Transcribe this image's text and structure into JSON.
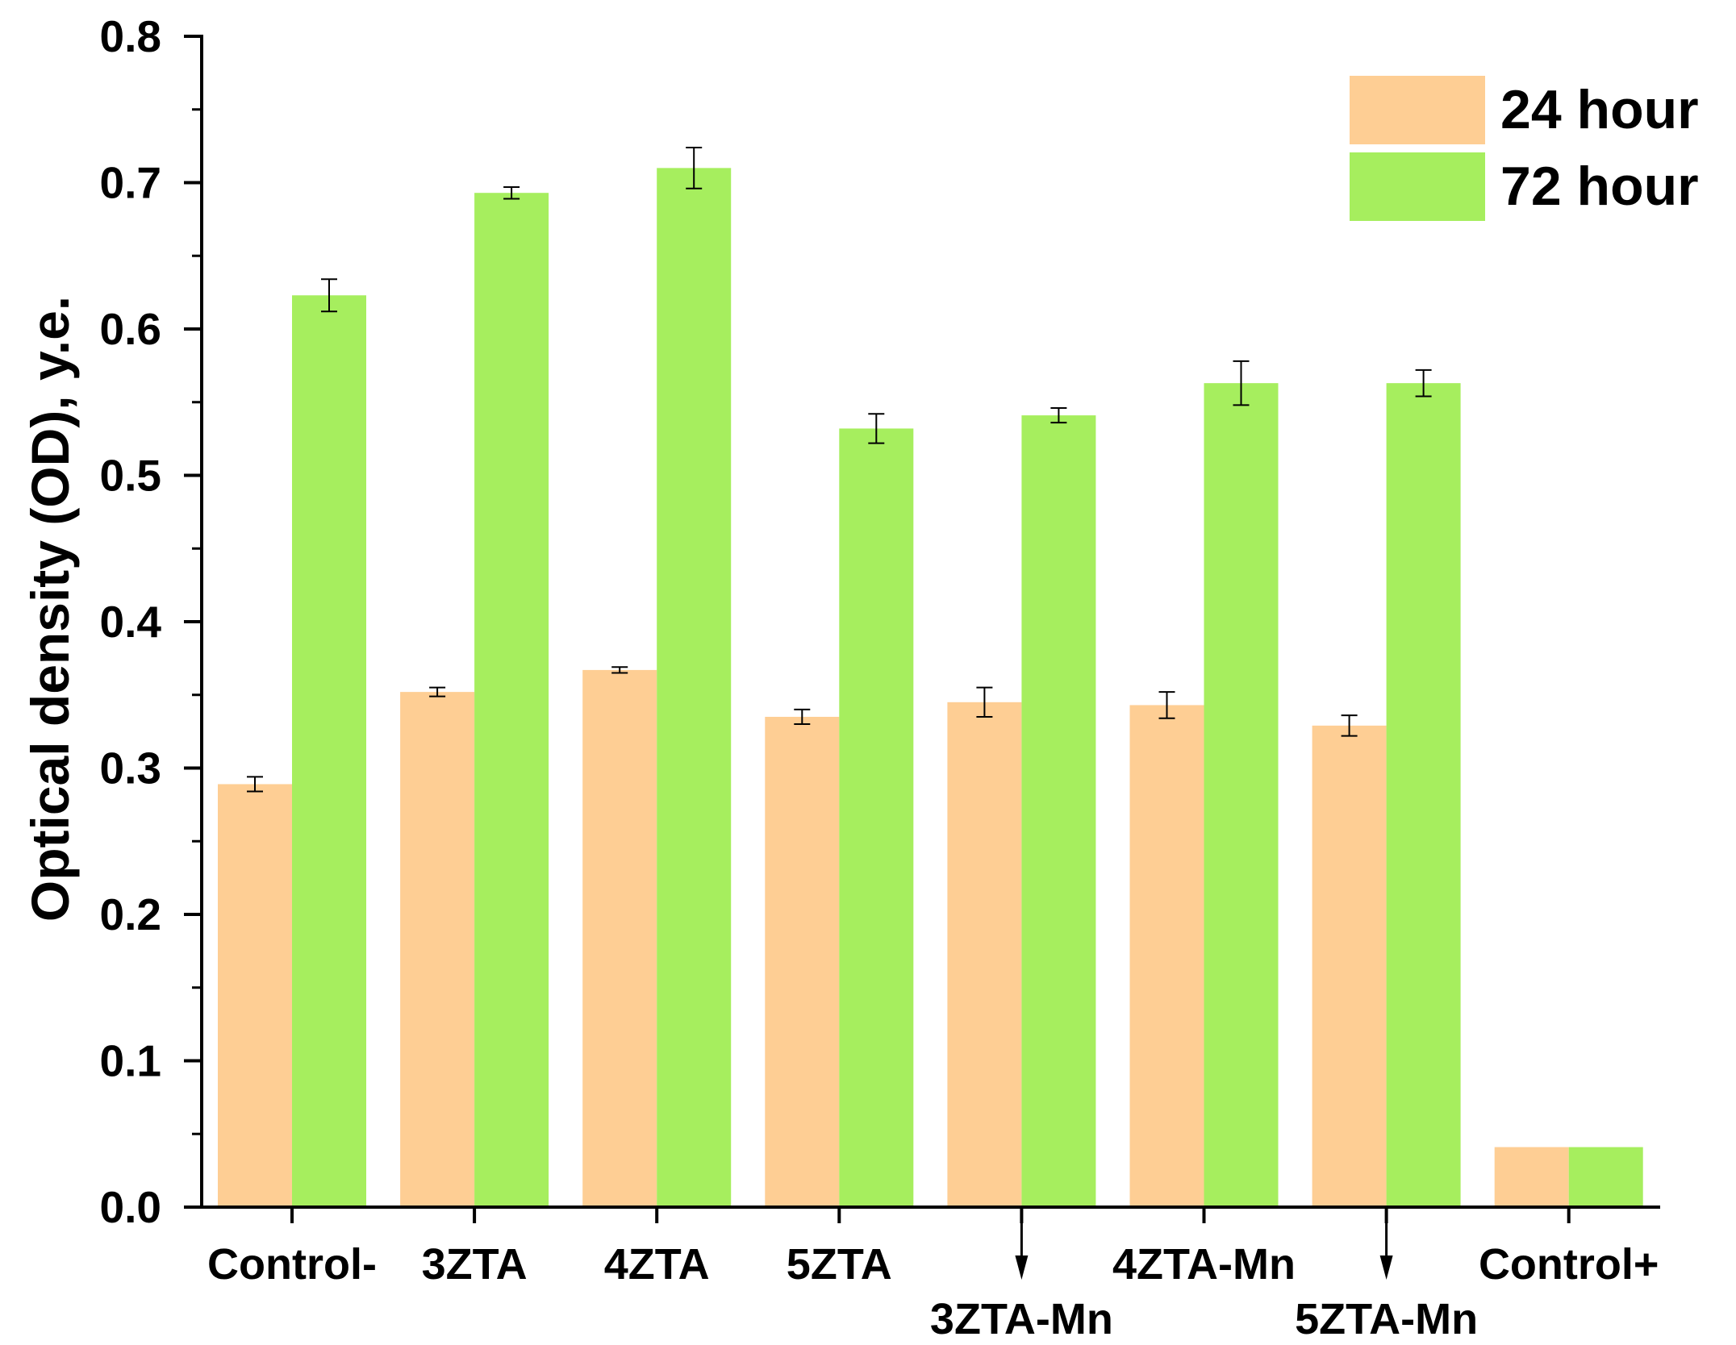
{
  "chart_data": {
    "type": "bar",
    "title": "",
    "xlabel": "",
    "ylabel": "Optical density (OD), y.e.",
    "ylim": [
      0,
      0.8
    ],
    "yticks": [
      0.0,
      0.1,
      0.2,
      0.3,
      0.4,
      0.5,
      0.6,
      0.7,
      0.8
    ],
    "ytick_labels": [
      "0.0",
      "0.1",
      "0.2",
      "0.3",
      "0.4",
      "0.5",
      "0.6",
      "0.7",
      "0.8"
    ],
    "grid": false,
    "legend_position": "top-right",
    "categories": [
      "Control-",
      "3ZTA",
      "4ZTA",
      "5ZTA",
      "3ZTA-Mn",
      "4ZTA-Mn",
      "5ZTA-Mn",
      "Control+"
    ],
    "series": [
      {
        "name": "24 hour",
        "color": "#FECE94",
        "values": [
          0.289,
          0.352,
          0.367,
          0.335,
          0.345,
          0.343,
          0.329,
          0.041
        ],
        "errors": [
          0.005,
          0.003,
          0.002,
          0.005,
          0.01,
          0.009,
          0.007,
          null
        ]
      },
      {
        "name": "72 hour",
        "color": "#A6EE5E",
        "values": [
          0.623,
          0.693,
          0.71,
          0.532,
          0.541,
          0.563,
          0.563,
          0.041
        ],
        "errors": [
          0.011,
          0.004,
          0.014,
          0.01,
          0.005,
          0.015,
          0.009,
          null
        ]
      }
    ]
  }
}
